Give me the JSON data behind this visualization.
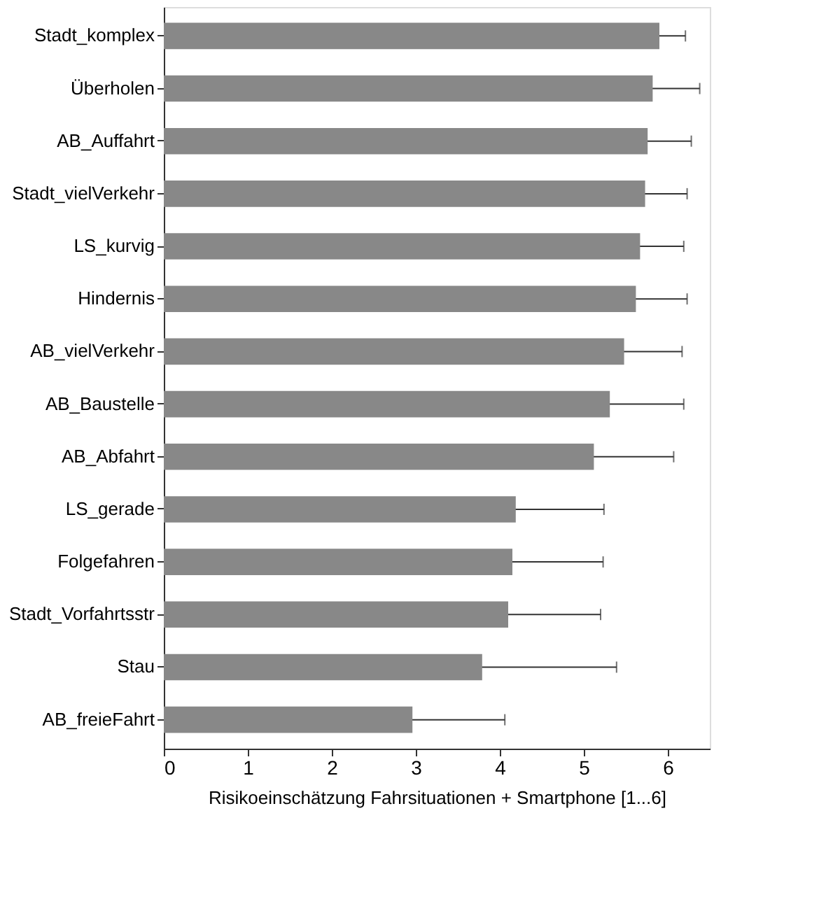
{
  "chart_data": {
    "type": "bar",
    "orientation": "horizontal",
    "xlabel": "Risikoeinschätzung Fahrsituationen + Smartphone [1...6]",
    "categories": [
      "Stadt_komplex",
      "Überholen",
      "AB_Auffahrt",
      "Stadt_vielVerkehr",
      "LS_kurvig",
      "Hindernis",
      "AB_vielVerkehr",
      "AB_Baustelle",
      "AB_Abfahrt",
      "LS_gerade",
      "Folgefahren",
      "Stadt_Vorfahrtsstr",
      "Stau",
      "AB_freieFahrt"
    ],
    "values": [
      5.9,
      5.82,
      5.76,
      5.73,
      5.67,
      5.62,
      5.48,
      5.31,
      5.12,
      4.19,
      4.15,
      4.1,
      3.79,
      2.96
    ],
    "errors": [
      0.31,
      0.56,
      0.52,
      0.5,
      0.52,
      0.61,
      0.69,
      0.88,
      0.95,
      1.05,
      1.08,
      1.1,
      1.6,
      1.1
    ],
    "color": "#888888",
    "xlim": [
      0,
      6.5
    ],
    "xticks": [
      0,
      1,
      2,
      3,
      4,
      5,
      6
    ],
    "grid": false
  }
}
